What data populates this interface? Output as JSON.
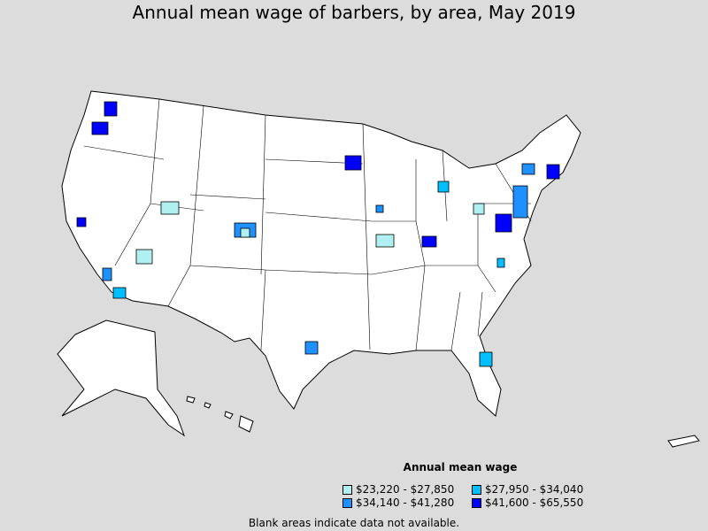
{
  "title": "Annual mean wage of barbers, by area, May 2019",
  "legend": {
    "title": "Annual mean wage",
    "items": [
      {
        "label": "$23,220 - $27,850",
        "color": "#b0f0f0"
      },
      {
        "label": "$27,950 - $34,040",
        "color": "#00bfff"
      },
      {
        "label": "$34,140 - $41,280",
        "color": "#1e90ff"
      },
      {
        "label": "$41,600 - $65,550",
        "color": "#0000ff"
      }
    ]
  },
  "note": "Blank areas indicate data not available.",
  "background_color": "#dcdcdc"
}
